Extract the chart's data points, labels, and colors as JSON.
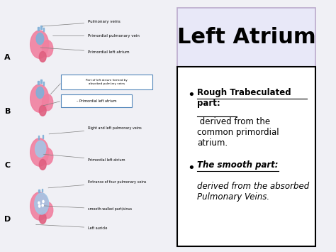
{
  "title": "Left Atrium",
  "title_fontsize": 22,
  "title_fontweight": "bold",
  "background_color": "#f0f0f5",
  "left_panel_bg": "#e8e8e8",
  "right_title_bg": "#e8e8f8",
  "right_box_bg": "#ffffff",
  "right_box_border": "#000000",
  "bullet1_bold": "Rough Trabeculated\npart:",
  "bullet1_rest": " derived from the\ncommon primordial\natrium.",
  "bullet2_bold": "The smooth part:",
  "bullet2_rest": "derived from the absorbed\nPulmonary Veins.",
  "section_labels": [
    "A",
    "B",
    "C",
    "D"
  ],
  "left_panel_color": "#d0d0d8",
  "pink_color": "#f080a0",
  "blue_color": "#80b0d8",
  "light_blue_color": "#a0c8e8"
}
